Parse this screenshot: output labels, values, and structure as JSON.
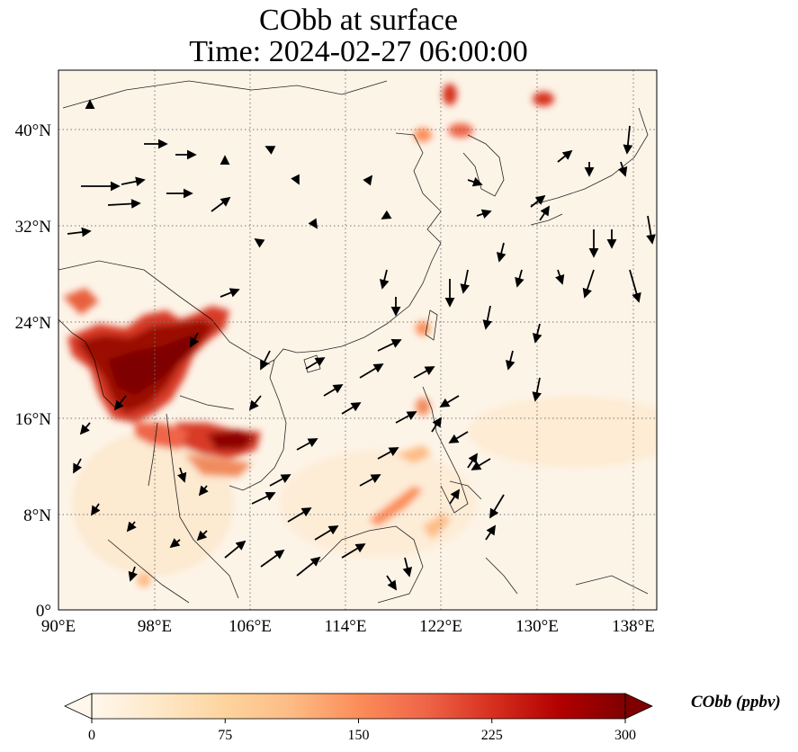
{
  "title_line1": "CObb at surface",
  "title_line2": "Time: 2024-02-27 06:00:00",
  "colorbar": {
    "label": "CObb (ppbv)",
    "ticks": [
      "0",
      "75",
      "150",
      "225",
      "300"
    ],
    "range": [
      0,
      300
    ],
    "extend": "both",
    "colormap": "OrRd",
    "colors": [
      "#fff7ec",
      "#fee8c8",
      "#fdd49e",
      "#fdbb84",
      "#fc8d59",
      "#ef6548",
      "#d7301f",
      "#b30000",
      "#7f0000"
    ]
  },
  "axes": {
    "lon_ticks": [
      "90°E",
      "98°E",
      "106°E",
      "114°E",
      "122°E",
      "130°E",
      "138°E"
    ],
    "lat_ticks": [
      "0°",
      "8°N",
      "16°N",
      "24°N",
      "32°N",
      "40°N"
    ],
    "lon_range": [
      90,
      140
    ],
    "lat_range": [
      0,
      45
    ],
    "gridlines": "dotted"
  }
}
